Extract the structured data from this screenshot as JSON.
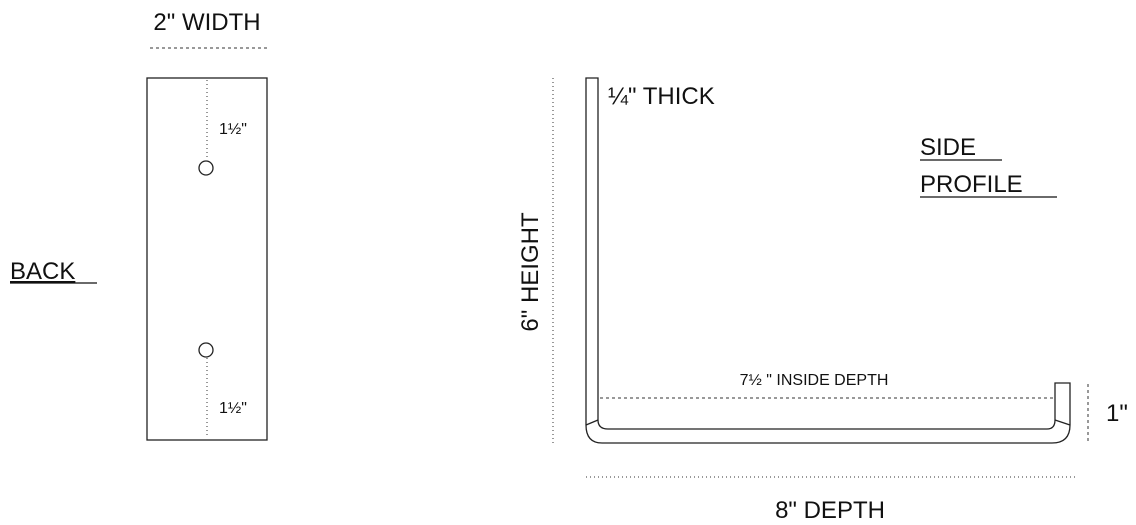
{
  "back": {
    "title": "BACK",
    "width_label": "2\" WIDTH",
    "top_hole_label": "1½\"",
    "bottom_hole_label": "1½\""
  },
  "side": {
    "title_line1": "SIDE",
    "title_line2": "PROFILE",
    "thickness_label": "¼\" THICK",
    "height_label": "6\" HEIGHT",
    "inside_depth_label": "7½ \" INSIDE DEPTH",
    "lip_label": "1\"",
    "depth_label": "8\" DEPTH"
  }
}
